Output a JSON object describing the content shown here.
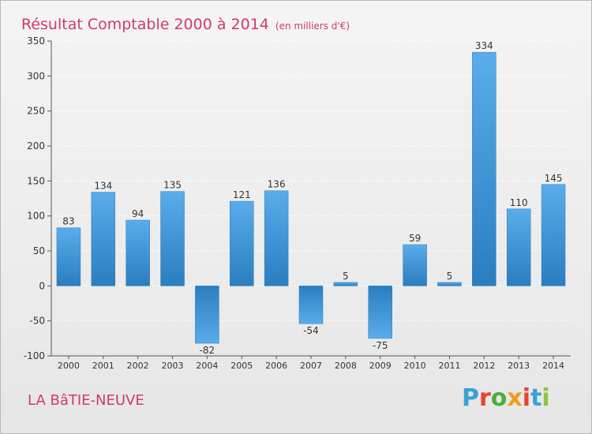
{
  "header": {
    "title": "Résultat Comptable 2000 à 2014",
    "unit_note": "(en milliers d'€)"
  },
  "footer": {
    "commune": "LA BâTIE-NEUVE",
    "brand": "Proxiti"
  },
  "colors": {
    "title": "#d03a6a",
    "bar_light": "#5aacea",
    "bar_dark": "#2a7ec0",
    "logo": [
      "#3aa0d8",
      "#e8452e",
      "#4cae3c",
      "#f29c1a",
      "#e8452e",
      "#3aa0d8",
      "#8cc63f"
    ]
  },
  "chart_data": {
    "type": "bar",
    "title": "Résultat Comptable 2000 à 2014",
    "subtitle": "(en milliers d'€)",
    "xlabel": "",
    "ylabel": "",
    "ylim": [
      -100,
      350
    ],
    "yticks": [
      -100,
      -50,
      0,
      50,
      100,
      150,
      200,
      250,
      300,
      350
    ],
    "grid": true,
    "categories": [
      "2000",
      "2001",
      "2002",
      "2003",
      "2004",
      "2005",
      "2006",
      "2007",
      "2008",
      "2009",
      "2010",
      "2011",
      "2012",
      "2013",
      "2014"
    ],
    "values": [
      83,
      134,
      94,
      135,
      -82,
      121,
      136,
      -54,
      5,
      -75,
      59,
      5,
      334,
      110,
      145
    ]
  }
}
